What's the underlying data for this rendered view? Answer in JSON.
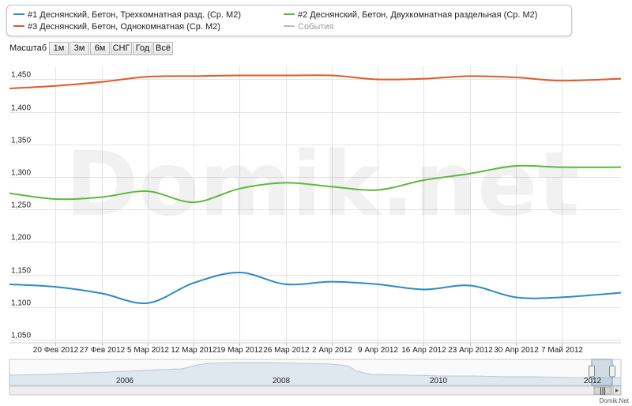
{
  "legend": {
    "items": [
      {
        "label": "#1 Деснянский, Бетон, Трехкомнатная разд. (Ср. М2)",
        "color": "#2f8ac4"
      },
      {
        "label": "#2 Деснянский, Бетон, Двухкомнатная раздельная (Ср. М2)",
        "color": "#5cb93b"
      },
      {
        "label": "#3 Деснянский, Бетон, Однокомнатная (Ср. М2)",
        "color": "#e0592a"
      },
      {
        "label": "События",
        "color": "#bbbbbb"
      }
    ]
  },
  "zoom": {
    "label": "Масштаб",
    "buttons": [
      "1м",
      "3м",
      "6м",
      "СНГ",
      "Год",
      "Всё"
    ]
  },
  "watermark": "Domik.net",
  "footer": "Domik.Net",
  "chart_data": {
    "type": "line",
    "ylim": [
      1045,
      1470
    ],
    "y_ticks": [
      1050,
      1100,
      1150,
      1200,
      1250,
      1300,
      1350,
      1400,
      1450
    ],
    "y_tick_labels": [
      "1,050",
      "1,100",
      "1,150",
      "1,200",
      "1,250",
      "1,300",
      "1,350",
      "1,400",
      "1,450"
    ],
    "xlim": [
      "2012-02-13",
      "2012-05-16"
    ],
    "x_ticks": [
      "2012-02-20",
      "2012-02-27",
      "2012-03-05",
      "2012-03-12",
      "2012-03-19",
      "2012-03-26",
      "2012-04-02",
      "2012-04-09",
      "2012-04-16",
      "2012-04-23",
      "2012-04-30",
      "2012-05-07"
    ],
    "x_tick_labels": [
      "20 Фев 2012",
      "27 Фев 2012",
      "5 Мар 2012",
      "12 Мар 2012",
      "19 Мар 2012",
      "26 Мар 2012",
      "2 Апр 2012",
      "9 Апр 2012",
      "16 Апр 2012",
      "23 Апр 2012",
      "30 Апр 2012",
      "7 Май 2012"
    ],
    "grid": true,
    "series": [
      {
        "name": "#1 Деснянский, Бетон, Трехкомнатная разд. (Ср. М2)",
        "color": "#2f8ac4",
        "x": [
          "2012-02-13",
          "2012-02-20",
          "2012-02-27",
          "2012-03-05",
          "2012-03-12",
          "2012-03-19",
          "2012-03-26",
          "2012-04-02",
          "2012-04-09",
          "2012-04-16",
          "2012-04-23",
          "2012-04-30",
          "2012-05-07",
          "2012-05-16"
        ],
        "values": [
          1135,
          1131,
          1121,
          1106,
          1137,
          1153,
          1135,
          1139,
          1135,
          1127,
          1133,
          1115,
          1115,
          1122
        ]
      },
      {
        "name": "#2 Деснянский, Бетон, Двухкомнатная раздельная (Ср. М2)",
        "color": "#5cb93b",
        "x": [
          "2012-02-13",
          "2012-02-20",
          "2012-02-27",
          "2012-03-05",
          "2012-03-12",
          "2012-03-19",
          "2012-03-26",
          "2012-04-02",
          "2012-04-09",
          "2012-04-16",
          "2012-04-23",
          "2012-04-30",
          "2012-05-07",
          "2012-05-16"
        ],
        "values": [
          1275,
          1266,
          1269,
          1278,
          1261,
          1282,
          1291,
          1285,
          1280,
          1295,
          1305,
          1317,
          1315,
          1315
        ]
      },
      {
        "name": "#3 Деснянский, Бетон, Однокомнатная (Ср. М2)",
        "color": "#e0592a",
        "x": [
          "2012-02-13",
          "2012-02-20",
          "2012-02-27",
          "2012-03-05",
          "2012-03-12",
          "2012-03-19",
          "2012-03-26",
          "2012-04-02",
          "2012-04-09",
          "2012-04-16",
          "2012-04-23",
          "2012-04-30",
          "2012-05-07",
          "2012-05-16"
        ],
        "values": [
          1436,
          1440,
          1446,
          1454,
          1455,
          1456,
          1456,
          1456,
          1450,
          1451,
          1455,
          1453,
          1448,
          1451
        ]
      }
    ],
    "navigator": {
      "labels": [
        "2006",
        "2008",
        "2010",
        "2012"
      ]
    }
  }
}
